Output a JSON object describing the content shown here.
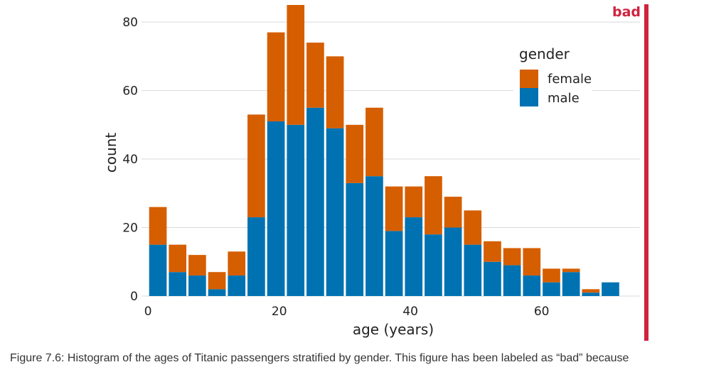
{
  "caption": "Figure 7.6: Histogram of the ages of Titanic passengers stratified by gender. This figure has been labeled as “bad” because",
  "badge": {
    "label": "bad",
    "color": "#d0233f"
  },
  "chart_data": {
    "type": "bar",
    "stacked": true,
    "xlabel": "age (years)",
    "ylabel": "count",
    "xlim": [
      -1,
      75
    ],
    "ylim": [
      0,
      85
    ],
    "x_ticks": [
      0,
      20,
      40,
      60
    ],
    "y_ticks": [
      0,
      20,
      40,
      60,
      80
    ],
    "bin_width": 3,
    "bins_center": [
      1.5,
      4.5,
      7.5,
      10.5,
      13.5,
      16.5,
      19.5,
      22.5,
      25.5,
      28.5,
      31.5,
      34.5,
      37.5,
      40.5,
      43.5,
      46.5,
      49.5,
      52.5,
      55.5,
      58.5,
      61.5,
      64.5,
      67.5,
      70.5
    ],
    "grid": true,
    "legend": {
      "title": "gender",
      "position": "top-right"
    },
    "series": [
      {
        "name": "male",
        "color": "#0072B2",
        "values": [
          15,
          7,
          6,
          2,
          6,
          23,
          51,
          50,
          55,
          49,
          33,
          35,
          19,
          23,
          18,
          20,
          15,
          10,
          9,
          6,
          4,
          7,
          1,
          4
        ]
      },
      {
        "name": "female",
        "color": "#D55E00",
        "values": [
          11,
          8,
          6,
          5,
          7,
          30,
          26,
          35,
          19,
          21,
          17,
          20,
          13,
          9,
          17,
          9,
          10,
          6,
          5,
          8,
          4,
          1,
          1,
          0
        ]
      }
    ]
  }
}
